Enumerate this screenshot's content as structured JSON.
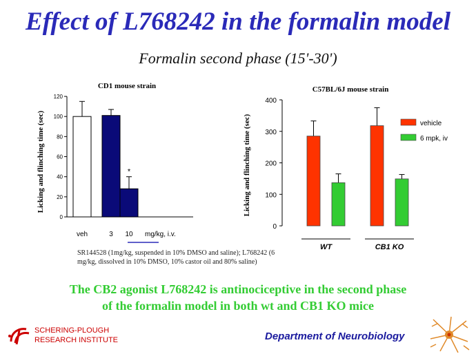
{
  "slide": {
    "title": "Effect of L768242 in the formalin model",
    "subtitle": "Formalin second phase (15'-30')",
    "footnote": "SR144528 (1mg/kg, suspended in 10% DMSO and saline); L768242 (6 mg/kg, dissolved in 10% DMSO, 10% castor oil and 80% saline)",
    "conclusion_line1": "The CB2 agonist L768242 is antinociceptive in the second phase",
    "conclusion_line2": "of the formalin model in both wt and CB1 KO mice",
    "company_line1": "SCHERING-PLOUGH",
    "company_line2": "RESEARCH INSTITUTE",
    "department": "Department of Neurobiology",
    "colors": {
      "title": "#2a2ab8",
      "conclusion": "#33cc33",
      "company": "#cc0000",
      "department": "#1a1a9e"
    },
    "icons": [
      "schering-plough-logo-icon",
      "neuron-icon"
    ]
  },
  "chart_data": [
    {
      "type": "bar",
      "title": "CD1 mouse strain",
      "ylabel": "Licking and flinching time (sec)",
      "xlabel": "mg/kg, i.v.",
      "categories": [
        "veh",
        "3",
        "10"
      ],
      "values": [
        100,
        101,
        28
      ],
      "errors": [
        15,
        6,
        12
      ],
      "colors": [
        "#ffffff",
        "#0a0a78",
        "#0a0a78"
      ],
      "significance": [
        "",
        "",
        "*"
      ],
      "ylim": [
        0,
        120
      ],
      "yticks": [
        "0",
        "20",
        "40",
        "60",
        "80",
        "100",
        "120"
      ],
      "legend": false
    },
    {
      "type": "bar",
      "title": "C57BL/6J mouse strain",
      "ylabel": "Licking and flinching time (sec)",
      "categories": [
        "WT",
        "CB1 KO"
      ],
      "series": [
        {
          "name": "vehicle",
          "color": "#ff3300",
          "values": [
            285,
            318
          ],
          "errors": [
            48,
            57
          ]
        },
        {
          "name": "6 mpk, iv",
          "color": "#33cc33",
          "values": [
            137,
            149
          ],
          "errors": [
            28,
            14
          ]
        }
      ],
      "ylim": [
        0,
        400
      ],
      "yticks": [
        "0",
        "100",
        "200",
        "300",
        "400"
      ],
      "legend": "top-right"
    }
  ]
}
